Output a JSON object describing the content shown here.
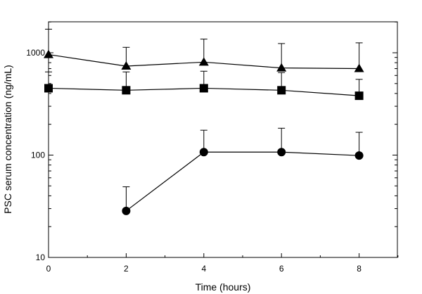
{
  "chart_data": {
    "type": "line",
    "title": "",
    "xlabel": "Time (hours)",
    "ylabel": "PSC serum concentration (ng/mL)",
    "y_scale": "log",
    "xlim": [
      0,
      9
    ],
    "ylim": [
      10,
      2000
    ],
    "x_ticks": [
      0,
      2,
      4,
      6,
      8
    ],
    "y_ticks": [
      10,
      100,
      1000
    ],
    "grid": false,
    "legend": "none",
    "series": [
      {
        "marker": "triangle",
        "x": [
          0,
          2,
          4,
          6,
          8
        ],
        "values": [
          960,
          740,
          810,
          710,
          700
        ],
        "error_upper": [
          1700,
          1130,
          1360,
          1230,
          1250
        ]
      },
      {
        "marker": "square",
        "x": [
          0,
          2,
          4,
          6,
          8
        ],
        "values": [
          450,
          430,
          450,
          430,
          380
        ],
        "error_upper": [
          650,
          650,
          660,
          640,
          550
        ]
      },
      {
        "marker": "circle",
        "x": [
          2,
          4,
          6,
          8
        ],
        "values": [
          28.5,
          107,
          107,
          99
        ],
        "error_upper": [
          49,
          175,
          183,
          167
        ]
      }
    ],
    "colors": {
      "line": "#000000",
      "marker": "#000000",
      "background": "#ffffff"
    }
  }
}
